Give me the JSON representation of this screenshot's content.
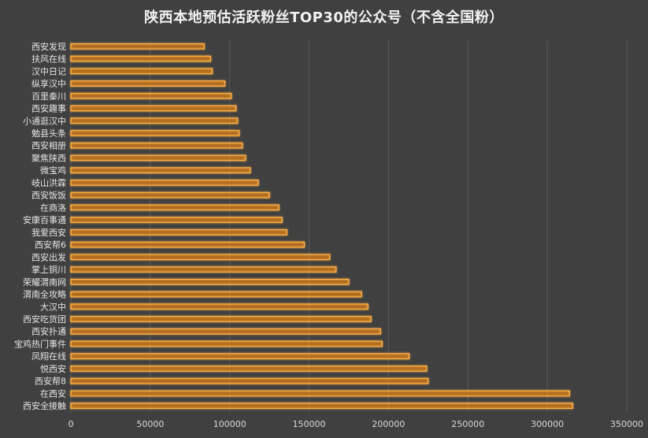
{
  "colors": {
    "background": "#404040",
    "bar_fill": "#ff8c00",
    "bar_glow": "#ffb347",
    "grid": "#5a5a5a",
    "text": "#e6e6e6"
  },
  "chart_data": {
    "type": "bar",
    "orientation": "horizontal",
    "title": "陕西本地预估活跃粉丝TOP30的公众号（不含全国粉）",
    "xlabel": "",
    "ylabel": "",
    "xlim": [
      0,
      350000
    ],
    "x_ticks": [
      0,
      50000,
      100000,
      150000,
      200000,
      250000,
      300000,
      350000
    ],
    "x_tick_labels": [
      "0",
      "50000",
      "100000",
      "150000",
      "200000",
      "250000",
      "300000",
      "350000"
    ],
    "grid": true,
    "legend": "none",
    "categories": [
      "西安发现",
      "扶风在线",
      "汉中日记",
      "纵享汉中",
      "百里秦川",
      "西安趣事",
      "小通逛汉中",
      "勉县头条",
      "西安相册",
      "聚焦陕西",
      "微宝鸡",
      "岐山洪霖",
      "西安饭饭",
      "在商洛",
      "安康百事通",
      "我爱西安",
      "西安帮6",
      "西安出发",
      "掌上铜川",
      "荣耀渭南网",
      "渭南全攻略",
      "大汉中",
      "西安吃货团",
      "西安扑通",
      "宝鸡热门事件",
      "凤翔在线",
      "悦西安",
      "西安帮8",
      "在西安",
      "西安全接触"
    ],
    "values": [
      84000,
      88000,
      89000,
      97000,
      101000,
      104000,
      105000,
      106000,
      108000,
      110000,
      113000,
      118000,
      125000,
      131000,
      133000,
      136000,
      147000,
      163000,
      167000,
      175000,
      183000,
      187000,
      189000,
      195000,
      196000,
      213000,
      224000,
      225000,
      314000,
      316000
    ]
  }
}
